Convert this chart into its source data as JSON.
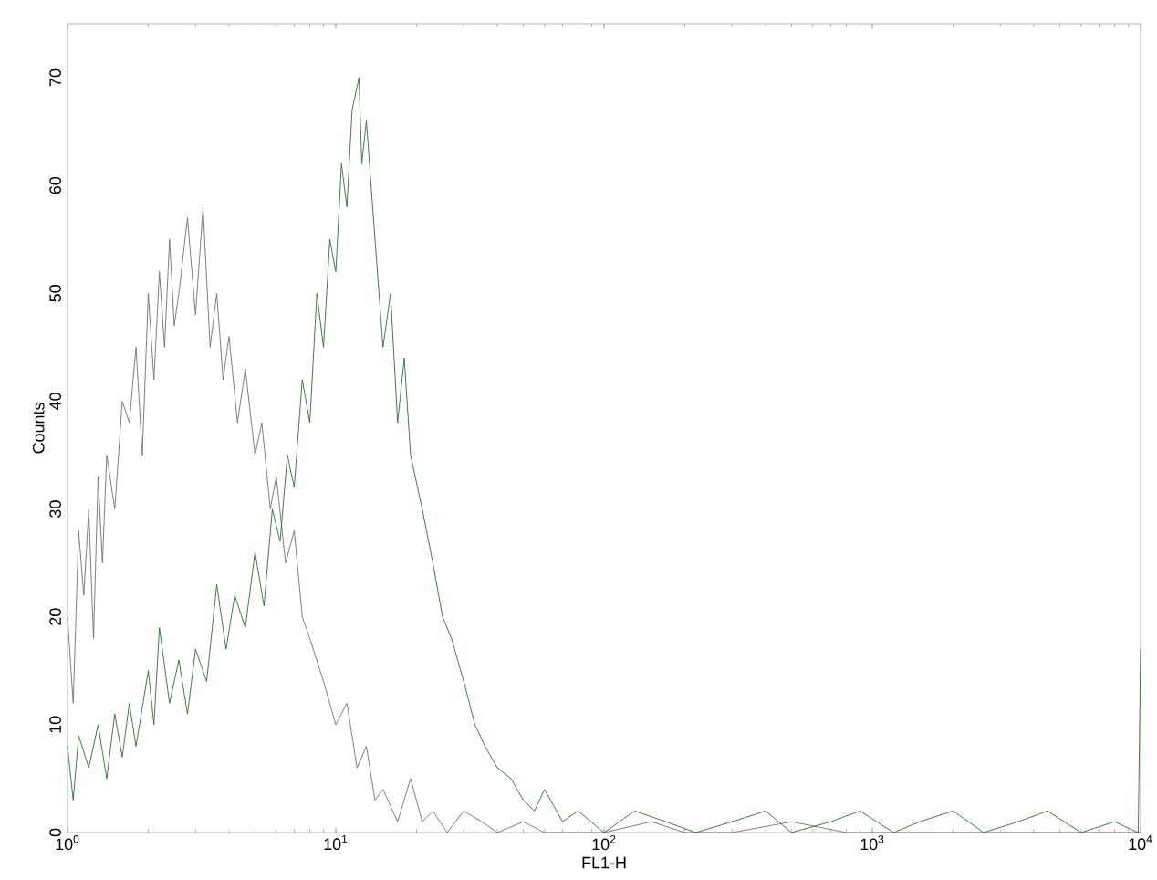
{
  "chart_data": {
    "type": "line",
    "xlabel": "FL1-H",
    "ylabel": "Counts",
    "log": "x",
    "grid": false,
    "marker": "none",
    "line_style": "solid",
    "xlim": [
      1,
      10000
    ],
    "ylim": [
      0,
      75
    ],
    "xticks": [
      {
        "value": 1,
        "label": "10$^{0}$"
      },
      {
        "value": 10,
        "label": "10$^{1}$"
      },
      {
        "value": 100,
        "label": "10$^{2}$"
      },
      {
        "value": 1000,
        "label": "10$^{3}$"
      },
      {
        "value": 10000,
        "label": "10$^{4}$"
      }
    ],
    "yticks": [
      0,
      10,
      20,
      30,
      40,
      50,
      60,
      70
    ],
    "series": [
      {
        "color": "#707070",
        "x": [
          1,
          1.05,
          1.1,
          1.15,
          1.2,
          1.25,
          1.3,
          1.35,
          1.4,
          1.5,
          1.6,
          1.7,
          1.8,
          1.9,
          2.0,
          2.1,
          2.2,
          2.3,
          2.4,
          2.5,
          2.6,
          2.8,
          3.0,
          3.2,
          3.4,
          3.6,
          3.8,
          4.0,
          4.3,
          4.6,
          5.0,
          5.3,
          5.7,
          6.0,
          6.5,
          7.0,
          7.5,
          8.0,
          9.0,
          10,
          11,
          12,
          13,
          14,
          15,
          17,
          19,
          21,
          23,
          26,
          30,
          35,
          40,
          50,
          60,
          80,
          100,
          150,
          200,
          300,
          500,
          800,
          1000,
          2000,
          5000,
          10000
        ],
        "values": [
          20,
          12,
          28,
          22,
          30,
          18,
          33,
          25,
          35,
          30,
          40,
          38,
          45,
          35,
          50,
          42,
          52,
          45,
          55,
          47,
          50,
          57,
          48,
          58,
          45,
          50,
          42,
          46,
          38,
          43,
          35,
          38,
          30,
          33,
          25,
          28,
          20,
          18,
          14,
          10,
          12,
          6,
          8,
          3,
          4,
          1,
          5,
          1,
          2,
          0,
          2,
          1,
          0,
          1,
          0,
          0,
          0,
          1,
          0,
          0,
          1,
          0,
          0,
          0,
          0,
          0
        ]
      },
      {
        "color": "#2e6b30",
        "x": [
          1,
          1.05,
          1.1,
          1.2,
          1.3,
          1.4,
          1.5,
          1.6,
          1.7,
          1.8,
          2.0,
          2.1,
          2.2,
          2.4,
          2.6,
          2.8,
          3.0,
          3.3,
          3.6,
          3.9,
          4.2,
          4.6,
          5.0,
          5.4,
          5.8,
          6.2,
          6.6,
          7.0,
          7.5,
          8.0,
          8.5,
          9.0,
          9.5,
          10,
          10.5,
          11,
          11.5,
          12.2,
          12.5,
          13,
          14,
          15,
          16,
          17,
          18,
          19,
          21,
          23,
          25,
          27,
          30,
          33,
          36,
          40,
          45,
          50,
          55,
          60,
          70,
          80,
          100,
          130,
          170,
          220,
          300,
          400,
          500,
          700,
          900,
          1200,
          1500,
          2000,
          2600,
          3500,
          4500,
          6000,
          8000,
          9800,
          10000
        ],
        "values": [
          8,
          3,
          9,
          6,
          10,
          5,
          11,
          7,
          12,
          8,
          15,
          10,
          19,
          12,
          16,
          11,
          17,
          14,
          23,
          17,
          22,
          19,
          26,
          21,
          30,
          27,
          35,
          32,
          42,
          38,
          50,
          45,
          55,
          52,
          62,
          58,
          67,
          70,
          62,
          66,
          55,
          45,
          50,
          38,
          44,
          35,
          30,
          25,
          20,
          18,
          14,
          10,
          8,
          6,
          5,
          3,
          2,
          4,
          1,
          2,
          0,
          2,
          1,
          0,
          1,
          2,
          0,
          1,
          2,
          0,
          1,
          2,
          0,
          1,
          2,
          0,
          1,
          0,
          17
        ]
      }
    ]
  }
}
